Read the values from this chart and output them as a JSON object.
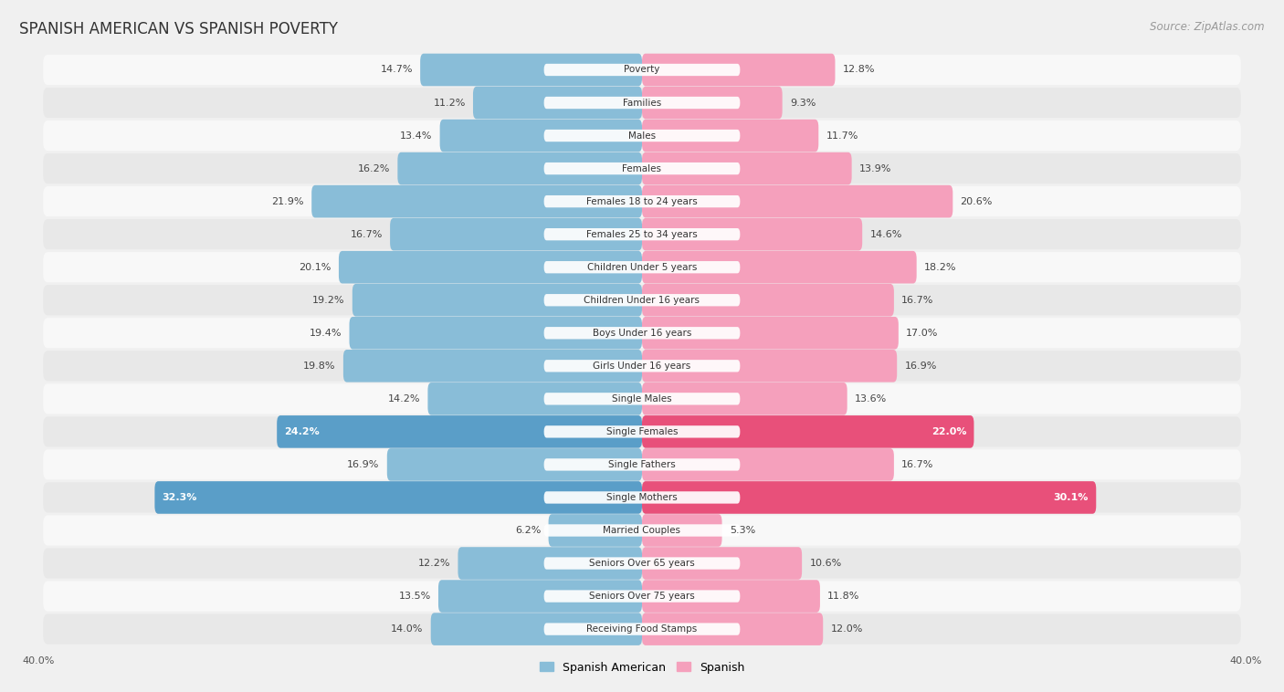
{
  "title": "SPANISH AMERICAN VS SPANISH POVERTY",
  "source": "Source: ZipAtlas.com",
  "categories": [
    "Poverty",
    "Families",
    "Males",
    "Females",
    "Females 18 to 24 years",
    "Females 25 to 34 years",
    "Children Under 5 years",
    "Children Under 16 years",
    "Boys Under 16 years",
    "Girls Under 16 years",
    "Single Males",
    "Single Females",
    "Single Fathers",
    "Single Mothers",
    "Married Couples",
    "Seniors Over 65 years",
    "Seniors Over 75 years",
    "Receiving Food Stamps"
  ],
  "spanish_american": [
    14.7,
    11.2,
    13.4,
    16.2,
    21.9,
    16.7,
    20.1,
    19.2,
    19.4,
    19.8,
    14.2,
    24.2,
    16.9,
    32.3,
    6.2,
    12.2,
    13.5,
    14.0
  ],
  "spanish": [
    12.8,
    9.3,
    11.7,
    13.9,
    20.6,
    14.6,
    18.2,
    16.7,
    17.0,
    16.9,
    13.6,
    22.0,
    16.7,
    30.1,
    5.3,
    10.6,
    11.8,
    12.0
  ],
  "sa_color": "#89bdd8",
  "sp_color": "#f5a0bc",
  "sa_highlight_color": "#5a9ec8",
  "sp_highlight_color": "#e8507a",
  "highlight_rows": [
    11,
    13
  ],
  "bg_color": "#f0f0f0",
  "row_light": "#f8f8f8",
  "row_dark": "#e8e8e8",
  "max_val": 40.0,
  "legend_labels": [
    "Spanish American",
    "Spanish"
  ],
  "legend_colors": [
    "#89bdd8",
    "#f5a0bc"
  ],
  "title_fontsize": 12,
  "source_fontsize": 8.5,
  "label_fontsize": 8,
  "category_fontsize": 7.5,
  "axis_label_fontsize": 8
}
